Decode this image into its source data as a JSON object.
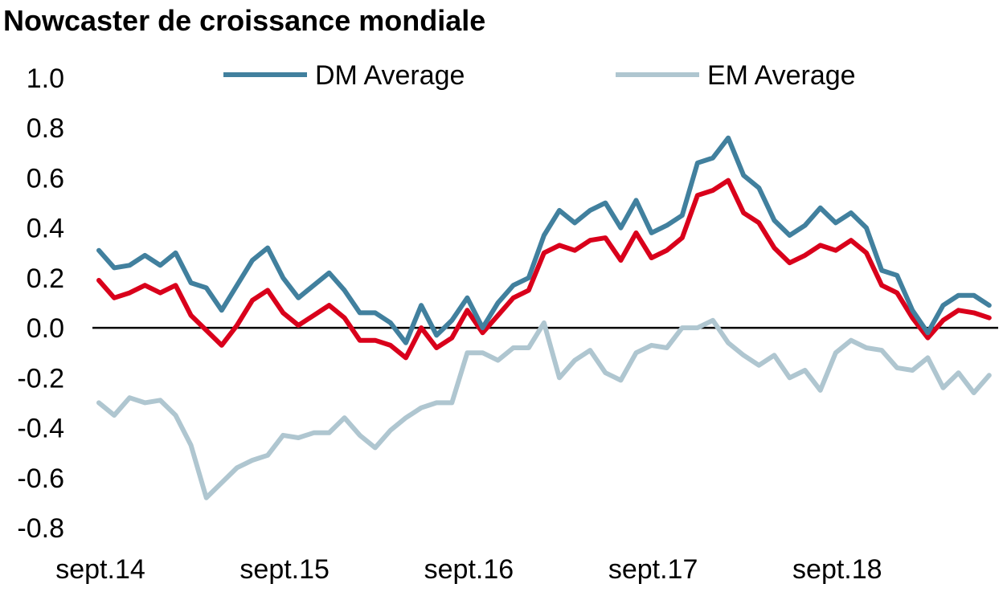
{
  "chart_data": {
    "type": "line",
    "title": "Nowcaster de croissance mondiale",
    "xlabel": "",
    "ylabel": "",
    "ylim": [
      -0.8,
      1.0
    ],
    "yticks": [
      "1.0",
      "0.8",
      "0.6",
      "0.4",
      "0.2",
      "0.0",
      "-0.2",
      "-0.4",
      "-0.6",
      "-0.8"
    ],
    "ytick_values": [
      1.0,
      0.8,
      0.6,
      0.4,
      0.2,
      0.0,
      -0.2,
      -0.4,
      -0.6,
      -0.8
    ],
    "xtick_labels": [
      "sept.14",
      "sept.15",
      "sept.16",
      "sept.17",
      "sept.18"
    ],
    "xtick_index": [
      0,
      12,
      24,
      36,
      48
    ],
    "zero_line": true,
    "grid": false,
    "legend_position": "top",
    "series": [
      {
        "name": "DM Average",
        "color": "#41809E",
        "values": [
          0.31,
          0.24,
          0.25,
          0.29,
          0.25,
          0.3,
          0.18,
          0.16,
          0.07,
          0.17,
          0.27,
          0.32,
          0.2,
          0.12,
          0.17,
          0.22,
          0.15,
          0.06,
          0.06,
          0.02,
          -0.06,
          0.09,
          -0.03,
          0.03,
          0.12,
          0.0,
          0.1,
          0.17,
          0.2,
          0.37,
          0.47,
          0.42,
          0.47,
          0.5,
          0.4,
          0.51,
          0.38,
          0.41,
          0.45,
          0.66,
          0.68,
          0.76,
          0.61,
          0.56,
          0.43,
          0.37,
          0.41,
          0.48,
          0.42,
          0.46,
          0.4,
          0.23,
          0.21,
          0.07,
          -0.02,
          0.09,
          0.13,
          0.13,
          0.09
        ]
      },
      {
        "name": "EM Average",
        "color": "#AFC6D0",
        "values": [
          -0.3,
          -0.35,
          -0.28,
          -0.3,
          -0.29,
          -0.35,
          -0.47,
          -0.68,
          -0.62,
          -0.56,
          -0.53,
          -0.51,
          -0.43,
          -0.44,
          -0.42,
          -0.42,
          -0.36,
          -0.43,
          -0.48,
          -0.41,
          -0.36,
          -0.32,
          -0.3,
          -0.3,
          -0.1,
          -0.1,
          -0.13,
          -0.08,
          -0.08,
          0.02,
          -0.2,
          -0.13,
          -0.09,
          -0.18,
          -0.21,
          -0.1,
          -0.07,
          -0.08,
          0.0,
          0.0,
          0.03,
          -0.06,
          -0.11,
          -0.15,
          -0.11,
          -0.2,
          -0.17,
          -0.25,
          -0.1,
          -0.05,
          -0.08,
          -0.09,
          -0.16,
          -0.17,
          -0.12,
          -0.24,
          -0.18,
          -0.26,
          -0.19
        ]
      },
      {
        "color": "#D9001B",
        "values": [
          0.19,
          0.12,
          0.14,
          0.17,
          0.14,
          0.17,
          0.05,
          -0.01,
          -0.07,
          0.01,
          0.11,
          0.15,
          0.06,
          0.01,
          0.05,
          0.09,
          0.04,
          -0.05,
          -0.05,
          -0.07,
          -0.12,
          0.0,
          -0.08,
          -0.04,
          0.07,
          -0.02,
          0.05,
          0.12,
          0.15,
          0.3,
          0.33,
          0.31,
          0.35,
          0.36,
          0.27,
          0.38,
          0.28,
          0.31,
          0.36,
          0.53,
          0.55,
          0.59,
          0.46,
          0.42,
          0.32,
          0.26,
          0.29,
          0.33,
          0.31,
          0.35,
          0.3,
          0.17,
          0.14,
          0.04,
          -0.04,
          0.03,
          0.07,
          0.06,
          0.04
        ]
      }
    ]
  }
}
